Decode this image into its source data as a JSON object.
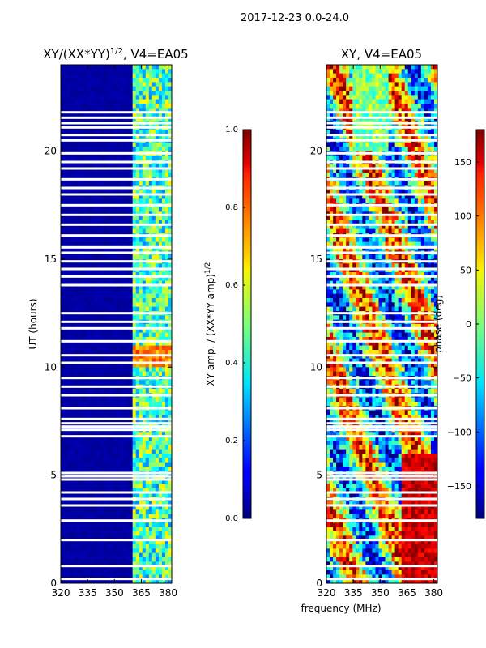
{
  "figure": {
    "suptitle": "2017-12-23 0.0-24.0",
    "shared_xlabel": "frequency (MHz)"
  },
  "chart_data": [
    {
      "type": "heatmap",
      "title": "XY/(XX*YY)",
      "title_sup": "1/2",
      "title_suffix": ", V4=EA05",
      "ylabel": "UT (hours)",
      "xlim": [
        320,
        382
      ],
      "ylim": [
        0,
        24
      ],
      "xticks": [
        320,
        335,
        350,
        365,
        380
      ],
      "yticks": [
        0,
        5,
        10,
        15,
        20
      ],
      "colorscale": "jet",
      "colorbar": {
        "label": "XY amp. / (XX*YY amp)",
        "label_sup": "1/2",
        "range": [
          0.0,
          1.0
        ],
        "ticks": [
          "0.0",
          "0.2",
          "0.4",
          "0.6",
          "0.8",
          "1.0"
        ]
      },
      "description_values": {
        "low_band_mhz": [
          320,
          360
        ],
        "low_band_value": 0.02,
        "high_band_mhz": [
          360,
          382
        ],
        "high_band_typical": [
          0.25,
          0.65
        ],
        "high_band_peak_hours": [
          10,
          11
        ],
        "high_band_peak_value": 0.85
      },
      "flagged_rows_hours": [
        0.2,
        0.8,
        2.0,
        2.9,
        3.6,
        3.9,
        4.2,
        4.8,
        4.95,
        5.1,
        6.8,
        7.1,
        7.25,
        7.4,
        7.6,
        8.1,
        8.7,
        9.1,
        9.5,
        10.2,
        10.55,
        11.2,
        11.8,
        12.1,
        12.5,
        13.8,
        14.2,
        14.55,
        14.9,
        15.3,
        15.55,
        16.1,
        16.6,
        17.05,
        17.5,
        18.0,
        18.3,
        18.7,
        19.2,
        19.5,
        19.9,
        20.5,
        20.75,
        21.1,
        21.3,
        21.55,
        21.8
      ]
    },
    {
      "type": "heatmap",
      "title": "XY, V4=EA05",
      "ylabel": "",
      "xlim": [
        320,
        382
      ],
      "ylim": [
        0,
        24
      ],
      "xticks": [
        320,
        335,
        350,
        365,
        380
      ],
      "yticks": [
        0,
        5,
        10,
        15,
        20
      ],
      "colorscale": "jet",
      "colorbar": {
        "label": "phase (deg)",
        "range": [
          -180,
          180
        ],
        "ticks": [
          "150",
          "100",
          "50",
          "0",
          "−50",
          "−100",
          "−150"
        ],
        "tick_values": [
          150,
          100,
          50,
          0,
          -50,
          -100,
          -150
        ]
      },
      "flagged_rows_hours": [
        0.2,
        0.8,
        2.0,
        2.9,
        3.6,
        3.9,
        4.2,
        4.8,
        4.95,
        5.1,
        6.8,
        7.1,
        7.25,
        7.4,
        7.6,
        8.1,
        8.7,
        9.1,
        9.5,
        10.2,
        10.55,
        11.2,
        11.8,
        12.1,
        12.5,
        13.8,
        14.2,
        14.55,
        14.9,
        15.3,
        15.55,
        16.1,
        16.6,
        17.05,
        17.5,
        18.0,
        18.3,
        18.7,
        19.2,
        19.5,
        19.9,
        20.5,
        20.75,
        21.1,
        21.3,
        21.55,
        21.8
      ]
    }
  ]
}
